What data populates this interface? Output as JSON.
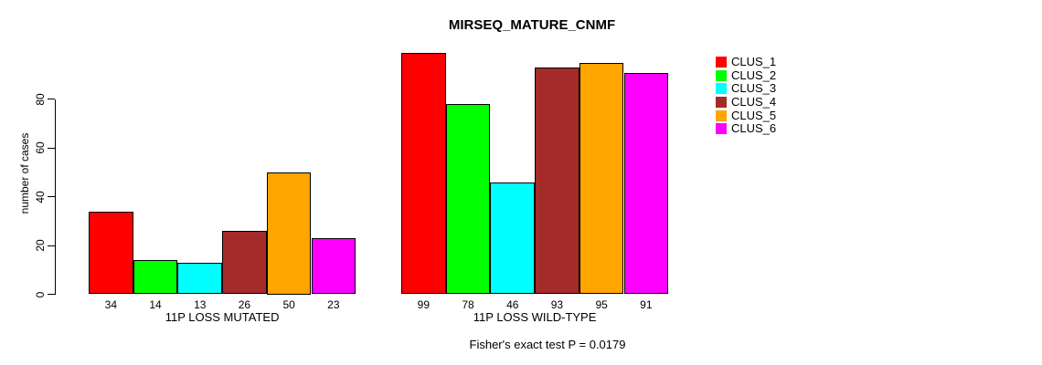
{
  "figure": {
    "background": "#FFFFFF"
  },
  "chart_data": {
    "type": "bar",
    "title": "MIRSEQ_MATURE_CNMF",
    "ylabel": "number of cases",
    "xlabel": "",
    "ylim": [
      0,
      99
    ],
    "yticks": [
      0,
      20,
      40,
      60,
      80
    ],
    "grid": false,
    "legend_position": "right",
    "series_names": [
      "CLUS_1",
      "CLUS_2",
      "CLUS_3",
      "CLUS_4",
      "CLUS_5",
      "CLUS_6"
    ],
    "series_colors": [
      "#FF0000",
      "#00FF00",
      "#00FFFF",
      "#A52A2A",
      "#FFA500",
      "#FF00FF"
    ],
    "bar_border_color": "#000000",
    "show_bar_values": true,
    "groups": [
      {
        "label": "11P LOSS MUTATED",
        "values": [
          34,
          14,
          13,
          26,
          50,
          23
        ]
      },
      {
        "label": "11P LOSS WILD-TYPE",
        "values": [
          99,
          78,
          46,
          93,
          95,
          91
        ]
      }
    ],
    "annotation": "Fisher's exact test P = 0.0179"
  }
}
